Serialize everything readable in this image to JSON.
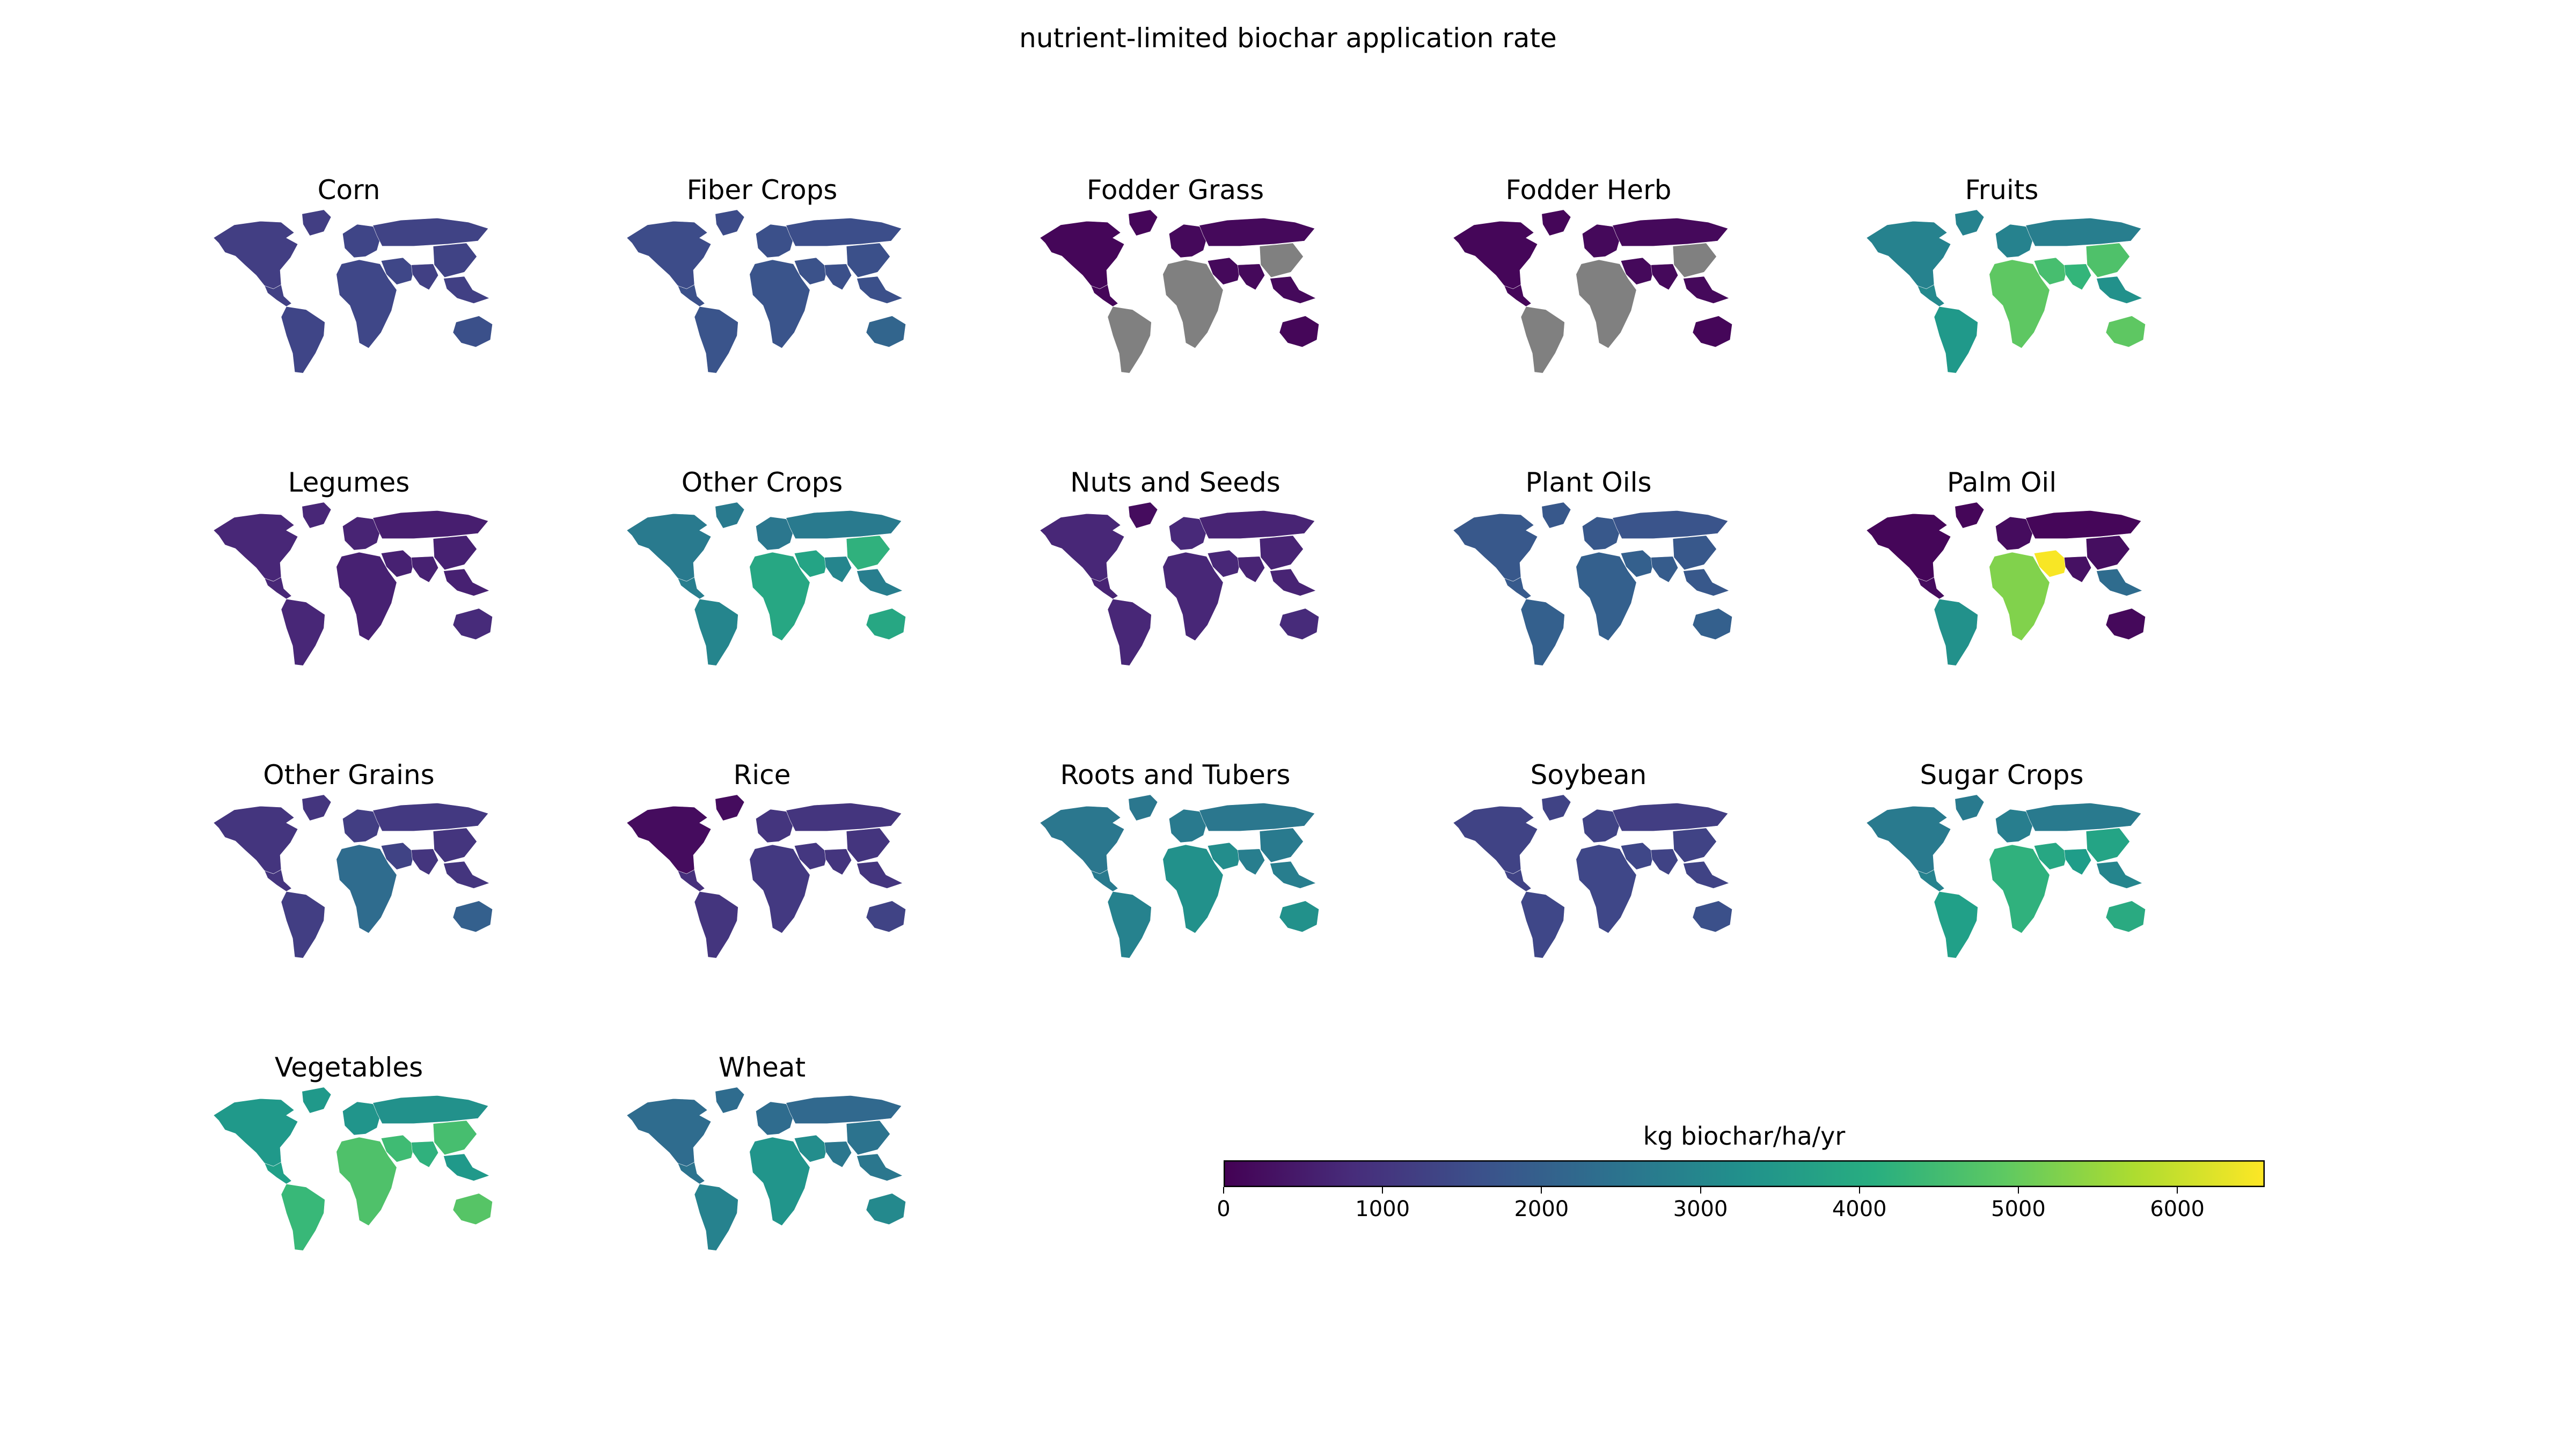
{
  "figure": {
    "title": "nutrient-limited biochar application rate"
  },
  "colorbar": {
    "label": "kg biochar/ha/yr",
    "min": 0,
    "max": 6550,
    "ticks": [
      "0",
      "1000",
      "2000",
      "3000",
      "4000",
      "5000",
      "6000"
    ],
    "tick_values": [
      0,
      1000,
      2000,
      3000,
      4000,
      5000,
      6000
    ],
    "colormap": "viridis",
    "missing_color": "#808080"
  },
  "regions": [
    "north_america",
    "greenland",
    "central_america",
    "south_america",
    "europe",
    "africa",
    "middle_east",
    "russia",
    "south_asia",
    "east_asia",
    "southeast_asia",
    "oceania"
  ],
  "maps": [
    {
      "title": "Corn",
      "values": {
        "north_america": 1200,
        "greenland": 1200,
        "central_america": 1250,
        "south_america": 1350,
        "europe": 1350,
        "africa": 1400,
        "middle_east": 1400,
        "russia": 1300,
        "south_asia": 1250,
        "east_asia": 1300,
        "southeast_asia": 1250,
        "oceania": 1600
      }
    },
    {
      "title": "Fiber Crops",
      "values": {
        "north_america": 1500,
        "greenland": 1500,
        "central_america": 1600,
        "south_america": 1700,
        "europe": 1600,
        "africa": 1700,
        "middle_east": 1650,
        "russia": 1550,
        "south_asia": 1600,
        "east_asia": 1600,
        "southeast_asia": 1600,
        "oceania": 2100
      }
    },
    {
      "title": "Fodder Grass",
      "values": {
        "north_america": 100,
        "greenland": 100,
        "central_america": 100,
        "south_america": null,
        "europe": 150,
        "africa": null,
        "middle_east": 150,
        "russia": 150,
        "south_asia": 150,
        "east_asia": null,
        "southeast_asia": 150,
        "oceania": 100
      }
    },
    {
      "title": "Fodder Herb",
      "values": {
        "north_america": 100,
        "greenland": 100,
        "central_america": 100,
        "south_america": null,
        "europe": 150,
        "africa": null,
        "middle_east": 150,
        "russia": 150,
        "south_asia": 150,
        "east_asia": null,
        "southeast_asia": 150,
        "oceania": 100
      }
    },
    {
      "title": "Fruits",
      "values": {
        "north_america": 2900,
        "greenland": 2900,
        "central_america": 3100,
        "south_america": 3500,
        "europe": 2900,
        "africa": 4900,
        "middle_east": 4600,
        "russia": 2800,
        "south_asia": 4300,
        "east_asia": 4700,
        "southeast_asia": 3300,
        "oceania": 4900
      }
    },
    {
      "title": "Legumes",
      "values": {
        "north_america": 700,
        "greenland": 700,
        "central_america": 700,
        "south_america": 700,
        "europe": 650,
        "africa": 600,
        "middle_east": 600,
        "russia": 550,
        "south_asia": 600,
        "east_asia": 600,
        "southeast_asia": 600,
        "oceania": 800
      }
    },
    {
      "title": "Other Crops",
      "values": {
        "north_america": 2700,
        "greenland": 2700,
        "central_america": 2800,
        "south_america": 3000,
        "europe": 2600,
        "africa": 3900,
        "middle_east": 3800,
        "russia": 2700,
        "south_asia": 3000,
        "east_asia": 4200,
        "southeast_asia": 2800,
        "oceania": 3900
      }
    },
    {
      "title": "Nuts and Seeds",
      "values": {
        "north_america": 700,
        "greenland": 200,
        "central_america": 650,
        "south_america": 700,
        "europe": 750,
        "africa": 700,
        "middle_east": 700,
        "russia": 650,
        "south_asia": 650,
        "east_asia": 650,
        "southeast_asia": 650,
        "oceania": 800
      }
    },
    {
      "title": "Plant Oils",
      "values": {
        "north_america": 1800,
        "greenland": 1800,
        "central_america": 1850,
        "south_america": 2000,
        "europe": 1800,
        "africa": 2000,
        "middle_east": 2000,
        "russia": 1700,
        "south_asia": 1900,
        "east_asia": 1800,
        "southeast_asia": 1800,
        "oceania": 2000
      }
    },
    {
      "title": "Palm Oil",
      "values": {
        "north_america": 100,
        "greenland": 100,
        "central_america": 200,
        "south_america": 3300,
        "europe": 200,
        "africa": 5300,
        "middle_east": 6500,
        "russia": 100,
        "south_asia": 300,
        "east_asia": 250,
        "southeast_asia": 2300,
        "oceania": 150
      }
    },
    {
      "title": "Other Grains",
      "values": {
        "north_america": 1000,
        "greenland": 1000,
        "central_america": 1000,
        "south_america": 1200,
        "europe": 1200,
        "africa": 2300,
        "middle_east": 1300,
        "russia": 1100,
        "south_asia": 1000,
        "east_asia": 1000,
        "southeast_asia": 1000,
        "oceania": 2000
      }
    },
    {
      "title": "Rice",
      "values": {
        "north_america": 200,
        "greenland": 200,
        "central_america": 900,
        "south_america": 1000,
        "europe": 1000,
        "africa": 1100,
        "middle_east": 1050,
        "russia": 1000,
        "south_asia": 1000,
        "east_asia": 1000,
        "southeast_asia": 1000,
        "oceania": 1300
      }
    },
    {
      "title": "Roots and Tubers",
      "values": {
        "north_america": 2600,
        "greenland": 2600,
        "central_america": 2700,
        "south_america": 2900,
        "europe": 2700,
        "africa": 3300,
        "middle_east": 3200,
        "russia": 2600,
        "south_asia": 2800,
        "east_asia": 2700,
        "southeast_asia": 2800,
        "oceania": 3300
      }
    },
    {
      "title": "Soybean",
      "values": {
        "north_america": 1300,
        "greenland": 1300,
        "central_america": 1300,
        "south_america": 1400,
        "europe": 1300,
        "africa": 1400,
        "middle_east": 1400,
        "russia": 1200,
        "south_asia": 1300,
        "east_asia": 1300,
        "southeast_asia": 1300,
        "oceania": 1600
      }
    },
    {
      "title": "Sugar Crops",
      "values": {
        "north_america": 2700,
        "greenland": 2700,
        "central_america": 2900,
        "south_america": 3700,
        "europe": 2800,
        "africa": 4200,
        "middle_east": 3900,
        "russia": 2700,
        "south_asia": 3600,
        "east_asia": 3800,
        "southeast_asia": 3000,
        "oceania": 4000
      }
    },
    {
      "title": "Vegetables",
      "values": {
        "north_america": 3500,
        "greenland": 3500,
        "central_america": 3700,
        "south_america": 4400,
        "europe": 3400,
        "africa": 4700,
        "middle_east": 4500,
        "russia": 3300,
        "south_asia": 4200,
        "east_asia": 4600,
        "southeast_asia": 3500,
        "oceania": 4800
      }
    },
    {
      "title": "Wheat",
      "values": {
        "north_america": 2300,
        "greenland": 2300,
        "central_america": 2500,
        "south_america": 2900,
        "europe": 2300,
        "africa": 3400,
        "middle_east": 3200,
        "russia": 2200,
        "south_asia": 2600,
        "east_asia": 2500,
        "southeast_asia": 2600,
        "oceania": 3100
      }
    }
  ]
}
